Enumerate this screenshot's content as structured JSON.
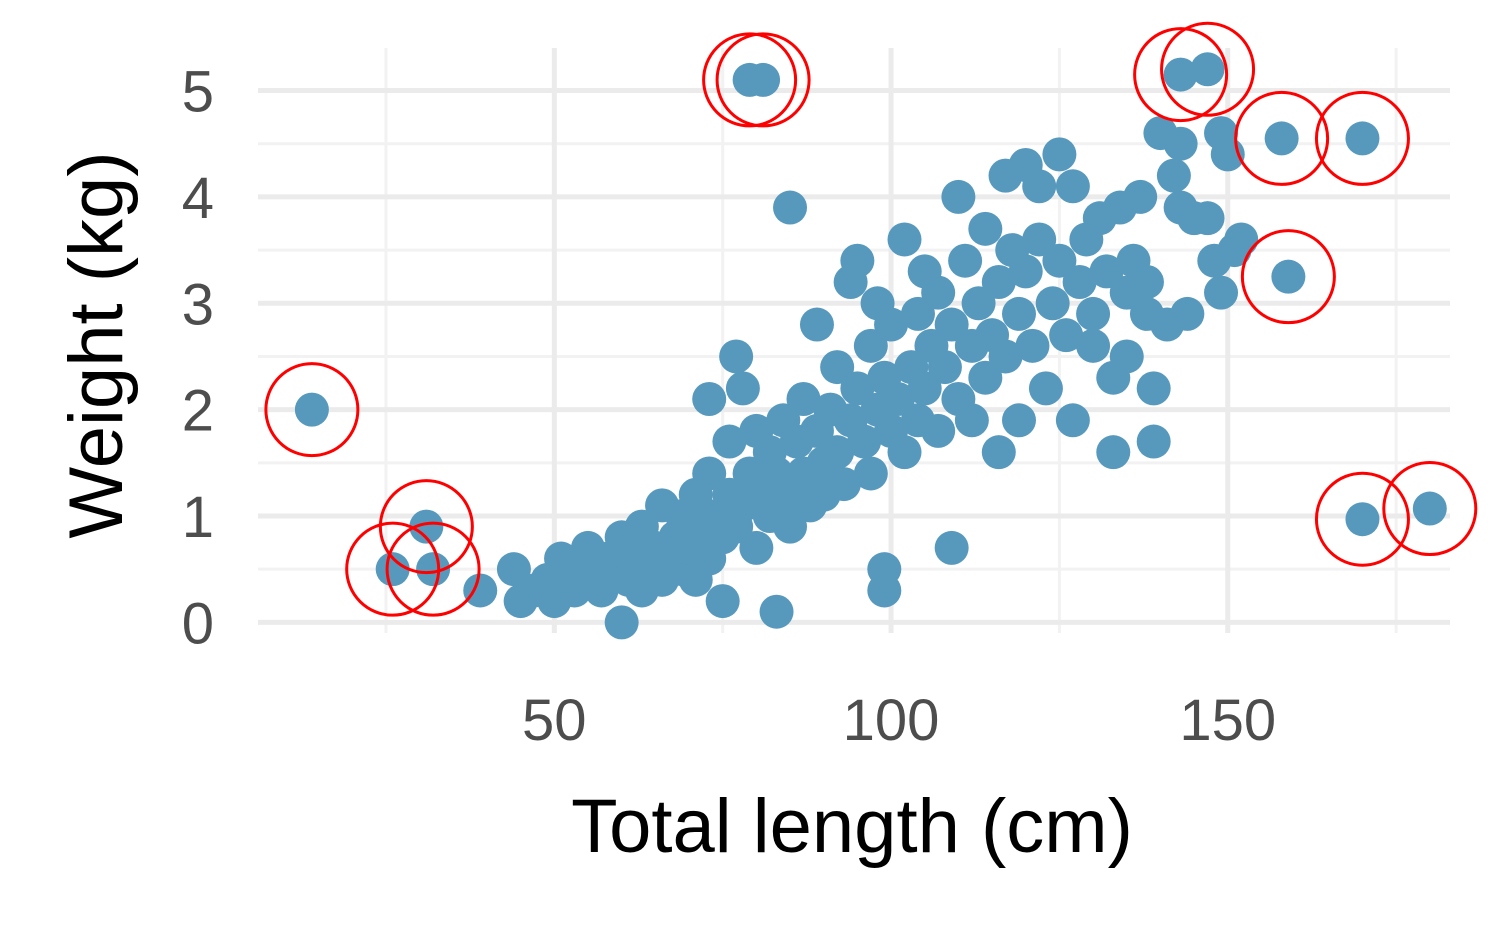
{
  "chart_data": {
    "type": "scatter",
    "title": "",
    "xlabel": "Total length (cm)",
    "ylabel": "Weight (kg)",
    "xlim": [
      6,
      183
    ],
    "ylim": [
      -0.1,
      5.4
    ],
    "x_ticks": [
      50,
      100,
      150
    ],
    "x_tick_labels": [
      "50",
      "100",
      "150"
    ],
    "x_minor_ticks": [
      25,
      75,
      125,
      175
    ],
    "y_ticks": [
      0,
      1,
      2,
      3,
      4,
      5
    ],
    "y_tick_labels": [
      "0",
      "1",
      "2",
      "3",
      "4",
      "5"
    ],
    "y_minor_ticks": [
      0.5,
      1.5,
      2.5,
      3.5,
      4.5
    ],
    "grid": true,
    "legend": "none",
    "colors": {
      "points": "#5799bd",
      "outlier_ring": "#ff0000",
      "major_grid": "#ebebeb",
      "minor_grid": "#f2f2f2"
    },
    "series": [
      {
        "points": [
          [
            39,
            0.3
          ],
          [
            44,
            0.5
          ],
          [
            45,
            0.2
          ],
          [
            47,
            0.3
          ],
          [
            49,
            0.4
          ],
          [
            50,
            0.2
          ],
          [
            51,
            0.6
          ],
          [
            52,
            0.4
          ],
          [
            53,
            0.3
          ],
          [
            54,
            0.5
          ],
          [
            55,
            0.7
          ],
          [
            56,
            0.4
          ],
          [
            57,
            0.3
          ],
          [
            58,
            0.6
          ],
          [
            59,
            0.5
          ],
          [
            60,
            0.0
          ],
          [
            60,
            0.8
          ],
          [
            61,
            0.4
          ],
          [
            62,
            0.6
          ],
          [
            63,
            0.3
          ],
          [
            63,
            0.9
          ],
          [
            64,
            0.5
          ],
          [
            65,
            0.7
          ],
          [
            66,
            0.4
          ],
          [
            66,
            1.1
          ],
          [
            67,
            0.6
          ],
          [
            68,
            0.8
          ],
          [
            69,
            0.5
          ],
          [
            69,
            1.0
          ],
          [
            70,
            0.7
          ],
          [
            71,
            1.2
          ],
          [
            71,
            0.4
          ],
          [
            72,
            0.9
          ],
          [
            73,
            0.6
          ],
          [
            73,
            1.4
          ],
          [
            74,
            1.0
          ],
          [
            75,
            0.8
          ],
          [
            75,
            0.2
          ],
          [
            76,
            1.2
          ],
          [
            76,
            1.7
          ],
          [
            77,
            0.9
          ],
          [
            77,
            2.5
          ],
          [
            78,
            1.1
          ],
          [
            78,
            2.2
          ],
          [
            79,
            1.4
          ],
          [
            80,
            0.7
          ],
          [
            80,
            1.8
          ],
          [
            81,
            1.2
          ],
          [
            82,
            1.0
          ],
          [
            82,
            1.6
          ],
          [
            83,
            0.1
          ],
          [
            83,
            1.4
          ],
          [
            84,
            1.9
          ],
          [
            85,
            1.2
          ],
          [
            85,
            0.9
          ],
          [
            86,
            1.7
          ],
          [
            87,
            2.1
          ],
          [
            87,
            1.4
          ],
          [
            88,
            1.1
          ],
          [
            89,
            1.8
          ],
          [
            89,
            2.8
          ],
          [
            90,
            1.5
          ],
          [
            90,
            1.2
          ],
          [
            91,
            2.0
          ],
          [
            92,
            1.6
          ],
          [
            92,
            2.4
          ],
          [
            93,
            1.3
          ],
          [
            94,
            3.2
          ],
          [
            94,
            1.9
          ],
          [
            95,
            3.4
          ],
          [
            95,
            2.2
          ],
          [
            96,
            1.7
          ],
          [
            97,
            2.6
          ],
          [
            97,
            1.4
          ],
          [
            98,
            2.0
          ],
          [
            98,
            3.0
          ],
          [
            99,
            0.5
          ],
          [
            99,
            0.3
          ],
          [
            99,
            2.3
          ],
          [
            100,
            1.8
          ],
          [
            100,
            2.8
          ],
          [
            101,
            2.1
          ],
          [
            102,
            3.6
          ],
          [
            102,
            1.6
          ],
          [
            103,
            2.4
          ],
          [
            104,
            2.9
          ],
          [
            104,
            1.9
          ],
          [
            105,
            3.3
          ],
          [
            105,
            2.2
          ],
          [
            106,
            2.6
          ],
          [
            107,
            1.8
          ],
          [
            107,
            3.1
          ],
          [
            108,
            2.4
          ],
          [
            109,
            0.7
          ],
          [
            109,
            2.8
          ],
          [
            110,
            4.0
          ],
          [
            110,
            2.1
          ],
          [
            111,
            3.4
          ],
          [
            112,
            2.6
          ],
          [
            112,
            1.9
          ],
          [
            113,
            3.0
          ],
          [
            114,
            2.3
          ],
          [
            114,
            3.7
          ],
          [
            115,
            2.7
          ],
          [
            116,
            1.6
          ],
          [
            116,
            3.2
          ],
          [
            117,
            4.2
          ],
          [
            117,
            2.5
          ],
          [
            118,
            3.5
          ],
          [
            119,
            1.9
          ],
          [
            119,
            2.9
          ],
          [
            120,
            4.3
          ],
          [
            120,
            3.3
          ],
          [
            121,
            2.6
          ],
          [
            122,
            4.1
          ],
          [
            122,
            3.6
          ],
          [
            123,
            2.2
          ],
          [
            124,
            3.0
          ],
          [
            125,
            4.4
          ],
          [
            125,
            3.4
          ],
          [
            126,
            2.7
          ],
          [
            127,
            4.1
          ],
          [
            127,
            1.9
          ],
          [
            128,
            3.2
          ],
          [
            129,
            3.6
          ],
          [
            130,
            2.6
          ],
          [
            130,
            2.9
          ],
          [
            131,
            3.8
          ],
          [
            132,
            3.3
          ],
          [
            133,
            2.3
          ],
          [
            133,
            1.6
          ],
          [
            134,
            3.9
          ],
          [
            135,
            3.1
          ],
          [
            135,
            2.5
          ],
          [
            136,
            3.4
          ],
          [
            137,
            4.0
          ],
          [
            138,
            3.2
          ],
          [
            138,
            2.9
          ],
          [
            139,
            2.2
          ],
          [
            139,
            1.7
          ],
          [
            140,
            4.6
          ],
          [
            141,
            2.8
          ],
          [
            142,
            4.2
          ],
          [
            143,
            4.5
          ],
          [
            143,
            3.9
          ],
          [
            144,
            2.9
          ],
          [
            145,
            3.8
          ],
          [
            147,
            3.8
          ],
          [
            148,
            3.4
          ],
          [
            149,
            4.6
          ],
          [
            149,
            3.1
          ],
          [
            150,
            4.4
          ],
          [
            151,
            3.5
          ],
          [
            152,
            3.6
          ],
          [
            85,
            3.9
          ],
          [
            73,
            2.1
          ]
        ]
      },
      {
        "points": [
          [
            14,
            2.0
          ],
          [
            31,
            0.9
          ],
          [
            26,
            0.5
          ],
          [
            32,
            0.5
          ],
          [
            79,
            5.1
          ],
          [
            81,
            5.1
          ],
          [
            143,
            5.15
          ],
          [
            147,
            5.2
          ],
          [
            158,
            4.55
          ],
          [
            159,
            3.25
          ],
          [
            170,
            4.55
          ],
          [
            170,
            0.97
          ],
          [
            180,
            1.07
          ]
        ]
      }
    ]
  }
}
